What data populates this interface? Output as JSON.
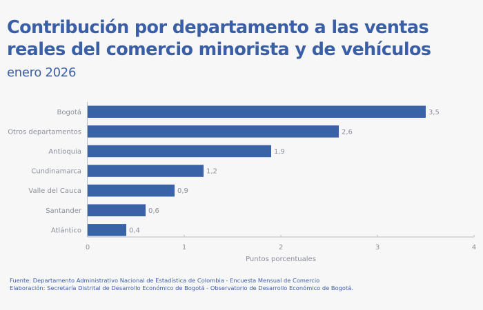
{
  "header": {
    "title": "Contribución por departamento a las ventas reales del comercio minorista y de vehículos",
    "subtitle": "enero 2026"
  },
  "footer": {
    "source": "Fuente: Departamento Administrativo Nacional de Estadística de Colombia - Encuesta Mensual de Comercio",
    "elaboration": "Elaboración: Secretaría Distrital de Desarrollo Económico de Bogotá - Observatorio de Desarrollo Económico de Bogotá."
  },
  "colors": {
    "bar": "#3a62a7",
    "title": "#3b5fa6",
    "axis": "#b9bcc2",
    "text": "#8a8f98"
  },
  "chart_data": {
    "type": "bar",
    "orientation": "horizontal",
    "title": "Contribución por departamento a las ventas reales del comercio minorista y de vehículos",
    "subtitle": "enero 2026",
    "categories": [
      "Bogotá",
      "Otros departamentos",
      "Antioquia",
      "Cundinamarca",
      "Valle del Cauca",
      "Santander",
      "Atlántico"
    ],
    "values": [
      3.5,
      2.6,
      1.9,
      1.2,
      0.9,
      0.6,
      0.4
    ],
    "value_labels": [
      "3,5",
      "2,6",
      "1,9",
      "1,2",
      "0,9",
      "0,6",
      "0,4"
    ],
    "xlabel": "Puntos porcentuales",
    "ylabel": "",
    "xlim": [
      0,
      4
    ],
    "xticks": [
      0,
      1,
      2,
      3,
      4
    ],
    "xtick_labels": [
      "0",
      "1",
      "2",
      "3",
      "4"
    ],
    "grid": false,
    "legend": "none"
  }
}
